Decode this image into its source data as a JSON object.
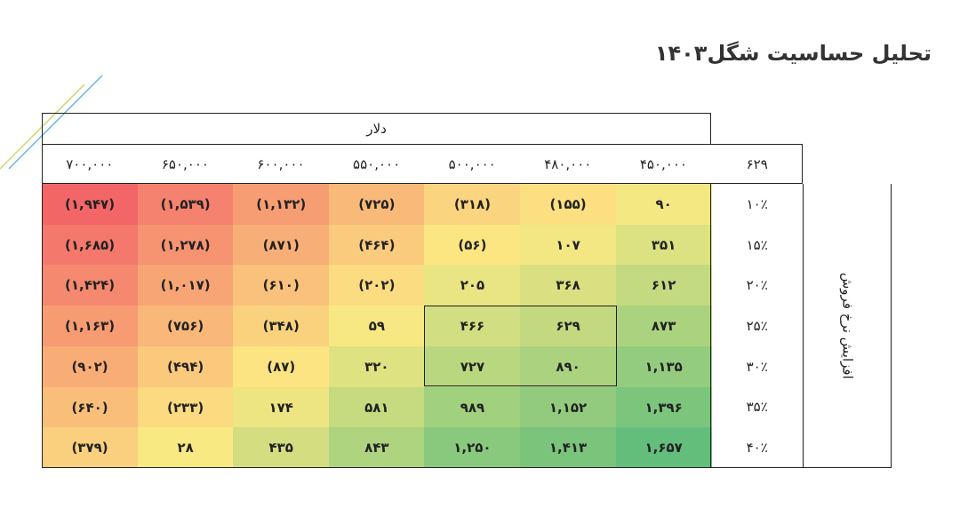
{
  "header": {
    "title": "تحلیل حساسیت شگل۱۴۰۳"
  },
  "table": {
    "column_group": "دلار",
    "corner": "۶۲۹",
    "row_group": "افزایش نرخ فروش",
    "columns": [
      "۷۰۰,۰۰۰",
      "۶۵۰,۰۰۰",
      "۶۰۰,۰۰۰",
      "۵۵۰,۰۰۰",
      "۵۰۰,۰۰۰",
      "۴۸۰,۰۰۰",
      "۴۵۰,۰۰۰"
    ],
    "rows": [
      {
        "label": "۱۰٪",
        "cells": [
          "(۱,۹۴۷)",
          "(۱,۵۳۹)",
          "(۱,۱۳۲)",
          "(۷۲۵)",
          "(۳۱۸)",
          "(۱۵۵)",
          "۹۰"
        ]
      },
      {
        "label": "۱۵٪",
        "cells": [
          "(۱,۶۸۵)",
          "(۱,۲۷۸)",
          "(۸۷۱)",
          "(۴۶۴)",
          "(۵۶)",
          "۱۰۷",
          "۳۵۱"
        ]
      },
      {
        "label": "۲۰٪",
        "cells": [
          "(۱,۴۲۴)",
          "(۱,۰۱۷)",
          "(۶۱۰)",
          "(۲۰۲)",
          "۲۰۵",
          "۳۶۸",
          "۶۱۲"
        ]
      },
      {
        "label": "۲۵٪",
        "cells": [
          "(۱,۱۶۳)",
          "(۷۵۶)",
          "(۳۴۸)",
          "۵۹",
          "۴۶۶",
          "۶۲۹",
          "۸۷۳"
        ]
      },
      {
        "label": "۳۰٪",
        "cells": [
          "(۹۰۲)",
          "(۴۹۴)",
          "(۸۷)",
          "۳۲۰",
          "۷۲۷",
          "۸۹۰",
          "۱,۱۳۵"
        ]
      },
      {
        "label": "۳۵٪",
        "cells": [
          "(۶۴۰)",
          "(۲۳۳)",
          "۱۷۴",
          "۵۸۱",
          "۹۸۹",
          "۱,۱۵۲",
          "۱,۳۹۶"
        ]
      },
      {
        "label": "۴۰٪",
        "cells": [
          "(۳۷۹)",
          "۲۸",
          "۴۳۵",
          "۸۴۳",
          "۱,۲۵۰",
          "۱,۴۱۳",
          "۱,۶۵۷"
        ]
      }
    ]
  }
}
